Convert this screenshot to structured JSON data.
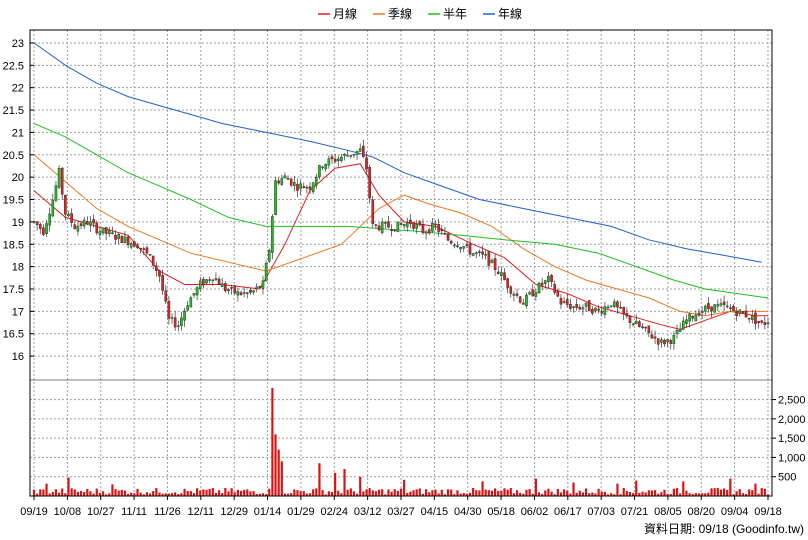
{
  "chart_data": {
    "type": "candlestick",
    "legend": [
      {
        "name": "月線",
        "color": "#e02020"
      },
      {
        "name": "季線",
        "color": "#f07820"
      },
      {
        "name": "半年",
        "color": "#20c020"
      },
      {
        "name": "年線",
        "color": "#2060d0"
      }
    ],
    "price_axis": {
      "ylim": [
        15.6,
        23.2
      ],
      "ticks": [
        16,
        16.5,
        17,
        17.5,
        18,
        18.5,
        19,
        19.5,
        20,
        20.5,
        21,
        21.5,
        22,
        22.5,
        23
      ],
      "grid": true
    },
    "volume_axis": {
      "ylim": [
        0,
        2800
      ],
      "ticks": [
        500,
        1000,
        1500,
        2000,
        2500
      ],
      "tick_labels": [
        "500",
        "1,000",
        "1,500",
        "2,000",
        "2,500"
      ],
      "grid": true
    },
    "x_ticks": [
      "09/19",
      "10/08",
      "10/27",
      "11/11",
      "11/26",
      "12/11",
      "12/29",
      "01/14",
      "01/29",
      "02/24",
      "03/12",
      "03/27",
      "04/15",
      "04/30",
      "05/18",
      "06/02",
      "06/17",
      "07/03",
      "07/21",
      "08/05",
      "08/20",
      "09/04",
      "09/18"
    ],
    "footnote": "資料日期: 09/18  (Goodinfo.tw)",
    "colors": {
      "up": "#22bb22",
      "down": "#dd2222",
      "volume": "#dd1111",
      "grid": "#a0a0a0"
    },
    "price_anchors": [
      [
        0,
        19.0
      ],
      [
        3,
        18.8
      ],
      [
        6,
        19.5
      ],
      [
        8,
        20.1
      ],
      [
        10,
        19.2
      ],
      [
        13,
        18.9
      ],
      [
        17,
        19.0
      ],
      [
        21,
        18.8
      ],
      [
        25,
        18.7
      ],
      [
        29,
        18.6
      ],
      [
        33,
        18.5
      ],
      [
        37,
        18.2
      ],
      [
        40,
        17.8
      ],
      [
        43,
        16.8
      ],
      [
        46,
        16.7
      ],
      [
        49,
        17.2
      ],
      [
        53,
        17.6
      ],
      [
        57,
        17.8
      ],
      [
        61,
        17.5
      ],
      [
        65,
        17.4
      ],
      [
        69,
        17.4
      ],
      [
        73,
        17.6
      ],
      [
        75,
        18.4
      ],
      [
        77,
        19.9
      ],
      [
        80,
        20.0
      ],
      [
        84,
        19.8
      ],
      [
        88,
        19.8
      ],
      [
        92,
        20.3
      ],
      [
        96,
        20.4
      ],
      [
        100,
        20.5
      ],
      [
        104,
        20.6
      ],
      [
        106,
        20.2
      ],
      [
        108,
        18.9
      ],
      [
        112,
        18.9
      ],
      [
        116,
        18.9
      ],
      [
        120,
        19.0
      ],
      [
        124,
        18.8
      ],
      [
        128,
        18.9
      ],
      [
        132,
        18.6
      ],
      [
        136,
        18.5
      ],
      [
        140,
        18.3
      ],
      [
        144,
        18.2
      ],
      [
        148,
        17.9
      ],
      [
        152,
        17.5
      ],
      [
        156,
        17.2
      ],
      [
        160,
        17.5
      ],
      [
        164,
        17.7
      ],
      [
        168,
        17.2
      ],
      [
        172,
        17.1
      ],
      [
        176,
        17.1
      ],
      [
        180,
        17.0
      ],
      [
        184,
        17.2
      ],
      [
        188,
        16.9
      ],
      [
        192,
        16.7
      ],
      [
        196,
        16.5
      ],
      [
        200,
        16.3
      ],
      [
        204,
        16.4
      ],
      [
        208,
        16.8
      ],
      [
        212,
        17.0
      ],
      [
        216,
        17.1
      ],
      [
        220,
        17.1
      ],
      [
        224,
        17.0
      ],
      [
        228,
        16.9
      ],
      [
        232,
        16.7
      ],
      [
        234,
        16.8
      ]
    ],
    "moving_averages": {
      "月線": [
        [
          0,
          19.7
        ],
        [
          10,
          19.1
        ],
        [
          20,
          18.9
        ],
        [
          30,
          18.7
        ],
        [
          40,
          17.9
        ],
        [
          48,
          17.6
        ],
        [
          60,
          17.6
        ],
        [
          72,
          17.5
        ],
        [
          80,
          18.5
        ],
        [
          88,
          19.7
        ],
        [
          96,
          20.2
        ],
        [
          104,
          20.3
        ],
        [
          110,
          19.6
        ],
        [
          118,
          19.0
        ],
        [
          128,
          18.9
        ],
        [
          140,
          18.5
        ],
        [
          150,
          18.2
        ],
        [
          160,
          17.6
        ],
        [
          170,
          17.4
        ],
        [
          180,
          17.1
        ],
        [
          190,
          16.9
        ],
        [
          200,
          16.7
        ],
        [
          206,
          16.6
        ],
        [
          214,
          16.8
        ],
        [
          222,
          17.0
        ],
        [
          230,
          16.9
        ],
        [
          234,
          16.9
        ]
      ],
      "季線": [
        [
          0,
          20.5
        ],
        [
          10,
          19.9
        ],
        [
          20,
          19.3
        ],
        [
          30,
          18.9
        ],
        [
          40,
          18.6
        ],
        [
          50,
          18.3
        ],
        [
          62,
          18.1
        ],
        [
          74,
          17.9
        ],
        [
          86,
          18.2
        ],
        [
          98,
          18.5
        ],
        [
          110,
          19.3
        ],
        [
          118,
          19.6
        ],
        [
          126,
          19.4
        ],
        [
          136,
          19.2
        ],
        [
          146,
          18.9
        ],
        [
          156,
          18.4
        ],
        [
          166,
          18.0
        ],
        [
          176,
          17.7
        ],
        [
          186,
          17.5
        ],
        [
          196,
          17.3
        ],
        [
          206,
          17.0
        ],
        [
          214,
          16.9
        ],
        [
          222,
          17.0
        ],
        [
          230,
          17.0
        ],
        [
          234,
          17.0
        ]
      ],
      "半年": [
        [
          0,
          21.2
        ],
        [
          10,
          20.9
        ],
        [
          20,
          20.5
        ],
        [
          30,
          20.1
        ],
        [
          40,
          19.8
        ],
        [
          50,
          19.5
        ],
        [
          62,
          19.1
        ],
        [
          74,
          18.9
        ],
        [
          90,
          18.9
        ],
        [
          100,
          18.9
        ],
        [
          120,
          18.8
        ],
        [
          136,
          18.7
        ],
        [
          150,
          18.6
        ],
        [
          166,
          18.5
        ],
        [
          180,
          18.3
        ],
        [
          192,
          18.0
        ],
        [
          204,
          17.7
        ],
        [
          214,
          17.5
        ],
        [
          224,
          17.4
        ],
        [
          234,
          17.3
        ]
      ],
      "年線": [
        [
          0,
          23.0
        ],
        [
          10,
          22.5
        ],
        [
          20,
          22.1
        ],
        [
          30,
          21.8
        ],
        [
          40,
          21.6
        ],
        [
          50,
          21.4
        ],
        [
          60,
          21.2
        ],
        [
          74,
          21.0
        ],
        [
          88,
          20.8
        ],
        [
          100,
          20.6
        ],
        [
          108,
          20.45
        ],
        [
          118,
          20.1
        ],
        [
          130,
          19.8
        ],
        [
          142,
          19.5
        ],
        [
          156,
          19.3
        ],
        [
          170,
          19.1
        ],
        [
          184,
          18.9
        ],
        [
          196,
          18.6
        ],
        [
          208,
          18.4
        ],
        [
          220,
          18.25
        ],
        [
          232,
          18.1
        ]
      ]
    },
    "volume_spikes": [
      [
        76,
        2800
      ],
      [
        77,
        1600
      ],
      [
        78,
        1200
      ],
      [
        79,
        900
      ],
      [
        91,
        850
      ],
      [
        96,
        600
      ],
      [
        99,
        700
      ],
      [
        104,
        500
      ],
      [
        118,
        420
      ],
      [
        143,
        380
      ],
      [
        160,
        450
      ],
      [
        172,
        350
      ],
      [
        186,
        320
      ],
      [
        192,
        400
      ],
      [
        207,
        380
      ],
      [
        222,
        450
      ],
      [
        230,
        320
      ],
      [
        11,
        480
      ],
      [
        4,
        320
      ],
      [
        25,
        300
      ]
    ],
    "days": 235
  }
}
